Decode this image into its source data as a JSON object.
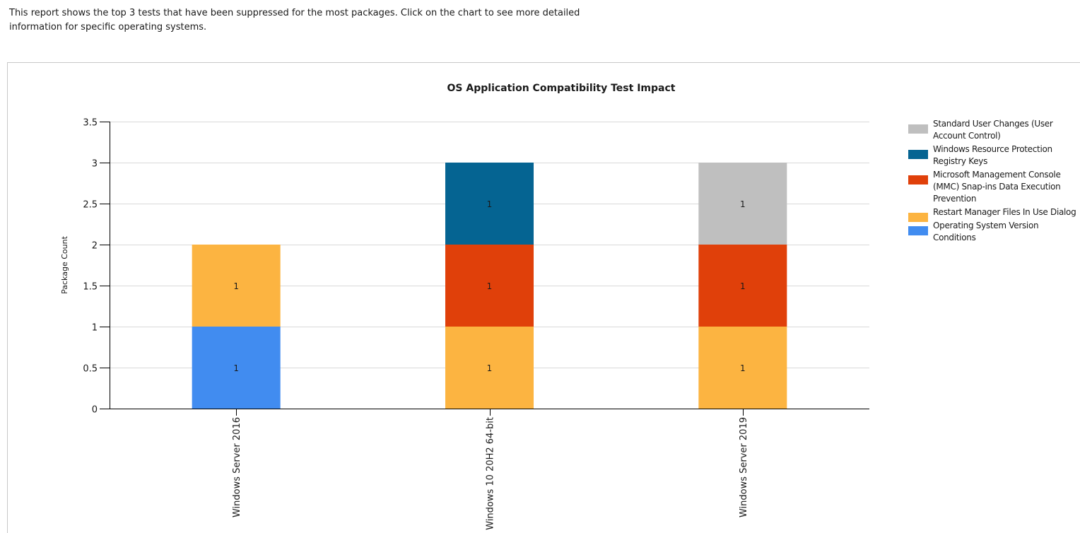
{
  "report": {
    "description_line1": "This report shows the top 3 tests that have been suppressed for the most packages. Click on the chart to see more detailed",
    "description_line2": "information for specific operating systems."
  },
  "chart_data": {
    "type": "bar",
    "stacked": true,
    "title": "OS Application Compatibility Test Impact",
    "xlabel": "",
    "ylabel": "Package Count",
    "ylim": [
      0,
      3.5
    ],
    "yticks": [
      0,
      0.5,
      1,
      1.5,
      2,
      2.5,
      3,
      3.5
    ],
    "ytick_labels": [
      "0",
      "0.5",
      "1",
      "1.5",
      "2",
      "2.5",
      "3",
      "3.5"
    ],
    "grid": true,
    "legend_position": "right",
    "categories": [
      "Windows Server 2016",
      "Windows 10 20H2 64-bit",
      "Windows Server 2019"
    ],
    "series": [
      {
        "name": "Operating System Version Conditions",
        "color": "#418CF0",
        "values": [
          1,
          0,
          0
        ]
      },
      {
        "name": "Restart Manager Files In Use Dialog",
        "color": "#FCB441",
        "values": [
          1,
          1,
          1
        ]
      },
      {
        "name": "Microsoft Management Console (MMC) Snap-ins Data Execution Prevention",
        "color": "#E0400A",
        "values": [
          0,
          1,
          1
        ]
      },
      {
        "name": "Windows Resource Protection Registry Keys",
        "color": "#056492",
        "values": [
          0,
          1,
          0
        ]
      },
      {
        "name": "Standard User Changes (User Account Control)",
        "color": "#BFBFBF",
        "values": [
          0,
          0,
          1
        ]
      }
    ],
    "legend_order": [
      4,
      3,
      2,
      1,
      0
    ],
    "data_labels": true
  }
}
